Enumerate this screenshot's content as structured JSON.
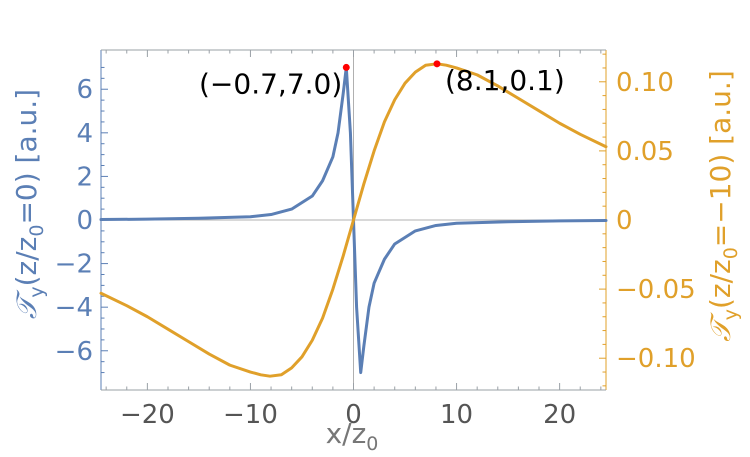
{
  "chart_data": {
    "type": "line",
    "x_axis": {
      "label": "x/z",
      "label_sub": "0",
      "range": [
        -24.5,
        24.5
      ],
      "ticks": [
        -20,
        -10,
        0,
        10,
        20
      ],
      "tick_labels": [
        "−20",
        "−10",
        "0",
        "10",
        "20"
      ]
    },
    "y_left": {
      "label_parts": [
        "𝒯",
        "y",
        "(z/z",
        "0",
        "=0) [a.u.]"
      ],
      "range": [
        -7.8,
        7.8
      ],
      "ticks": [
        -6,
        -4,
        -2,
        0,
        2,
        4,
        6
      ],
      "tick_labels": [
        "−6",
        "−4",
        "−2",
        "0",
        "2",
        "4",
        "6"
      ],
      "color": "#5b7fb5"
    },
    "y_right": {
      "label_parts": [
        "𝒯",
        "y",
        "(z/z",
        "0",
        "=−10) [a.u.]"
      ],
      "range": [
        -0.123,
        0.123
      ],
      "ticks": [
        -0.1,
        -0.05,
        0,
        0.05,
        0.1
      ],
      "tick_labels": [
        "−0.10",
        "−0.05",
        "0",
        "0.05",
        "0.10"
      ],
      "color": "#e0a02a"
    },
    "series": [
      {
        "axis": "left",
        "color": "#5b7fb5",
        "x": [
          -24.5,
          -20,
          -15,
          -10,
          -8,
          -6,
          -4,
          -3,
          -2,
          -1.5,
          -1,
          -0.7,
          -0.3,
          0,
          0.3,
          0.7,
          1,
          1.5,
          2,
          3,
          4,
          6,
          8,
          10,
          15,
          20,
          24.5
        ],
        "y": [
          0.02,
          0.04,
          0.08,
          0.15,
          0.25,
          0.5,
          1.1,
          1.8,
          2.9,
          4.0,
          5.8,
          7.0,
          4.0,
          0.0,
          -4.0,
          -7.0,
          -5.8,
          -4.0,
          -2.9,
          -1.8,
          -1.1,
          -0.5,
          -0.25,
          -0.15,
          -0.08,
          -0.04,
          -0.02
        ]
      },
      {
        "axis": "right",
        "color": "#e0a02a",
        "x": [
          -24.5,
          -22,
          -20,
          -18,
          -16,
          -14,
          -12,
          -10,
          -9,
          -8.1,
          -7,
          -6,
          -5,
          -4,
          -3,
          -2,
          -1,
          0,
          1,
          2,
          3,
          4,
          5,
          6,
          7,
          8.1,
          9,
          10,
          12,
          14,
          16,
          18,
          20,
          22,
          24.5
        ],
        "y": [
          -0.053,
          -0.062,
          -0.07,
          -0.079,
          -0.088,
          -0.097,
          -0.105,
          -0.11,
          -0.112,
          -0.113,
          -0.112,
          -0.107,
          -0.099,
          -0.087,
          -0.071,
          -0.05,
          -0.026,
          0.0,
          0.026,
          0.05,
          0.071,
          0.087,
          0.099,
          0.107,
          0.112,
          0.113,
          0.112,
          0.11,
          0.105,
          0.097,
          0.088,
          0.079,
          0.07,
          0.062,
          0.053
        ]
      }
    ],
    "markers": [
      {
        "axis": "left",
        "x": -0.7,
        "y": 7.0,
        "label": "(−0.7,7.0)",
        "color": "#ff0000"
      },
      {
        "axis": "right",
        "x": 8.1,
        "y": 0.113,
        "label": "(8.1,0.1)",
        "color": "#ff0000"
      }
    ],
    "zero_lines": true
  }
}
